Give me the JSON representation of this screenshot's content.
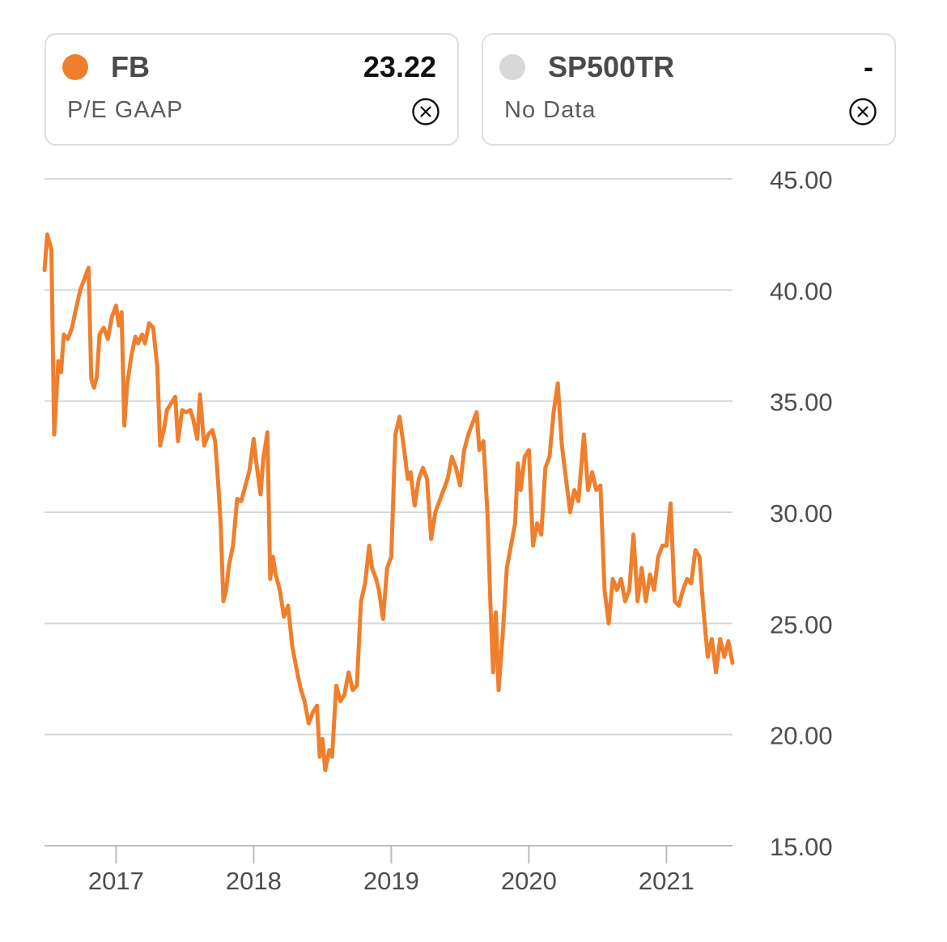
{
  "legend": [
    {
      "symbol": "FB",
      "value": "23.22",
      "metric": "P/E GAAP",
      "color": "#ef7f2d",
      "icon": "close-circle-icon"
    },
    {
      "symbol": "SP500TR",
      "value": "-",
      "metric": "No Data",
      "color": "#d8d8d8",
      "icon": "close-circle-icon"
    }
  ],
  "chart_data": {
    "type": "line",
    "title": "",
    "xlabel": "",
    "ylabel": "",
    "xlim": [
      2016.48,
      2021.48
    ],
    "ylim": [
      15,
      45
    ],
    "yticks": [
      "45.00",
      "40.00",
      "35.00",
      "30.00",
      "25.00",
      "20.00",
      "15.00"
    ],
    "xticks": [
      {
        "label": "2017",
        "value": 2017
      },
      {
        "label": "2018",
        "value": 2018
      },
      {
        "label": "2019",
        "value": 2019
      },
      {
        "label": "2020",
        "value": 2020
      },
      {
        "label": "2021",
        "value": 2021
      }
    ],
    "grid": true,
    "series": [
      {
        "name": "FB",
        "color": "#ef7f2d",
        "points": [
          [
            2016.48,
            40.9
          ],
          [
            2016.5,
            42.5
          ],
          [
            2016.53,
            41.8
          ],
          [
            2016.55,
            33.5
          ],
          [
            2016.58,
            36.8
          ],
          [
            2016.6,
            36.3
          ],
          [
            2016.62,
            38.0
          ],
          [
            2016.65,
            37.8
          ],
          [
            2016.68,
            38.3
          ],
          [
            2016.71,
            39.2
          ],
          [
            2016.74,
            40.0
          ],
          [
            2016.77,
            40.5
          ],
          [
            2016.8,
            41.0
          ],
          [
            2016.82,
            36.0
          ],
          [
            2016.84,
            35.6
          ],
          [
            2016.86,
            36.1
          ],
          [
            2016.88,
            38.0
          ],
          [
            2016.91,
            38.3
          ],
          [
            2016.94,
            37.8
          ],
          [
            2016.97,
            38.8
          ],
          [
            2017.0,
            39.3
          ],
          [
            2017.02,
            38.4
          ],
          [
            2017.04,
            39.0
          ],
          [
            2017.06,
            33.9
          ],
          [
            2017.08,
            35.7
          ],
          [
            2017.11,
            37.0
          ],
          [
            2017.14,
            37.9
          ],
          [
            2017.16,
            37.6
          ],
          [
            2017.19,
            38.0
          ],
          [
            2017.21,
            37.6
          ],
          [
            2017.24,
            38.5
          ],
          [
            2017.27,
            38.3
          ],
          [
            2017.3,
            36.5
          ],
          [
            2017.32,
            33.0
          ],
          [
            2017.35,
            33.8
          ],
          [
            2017.37,
            34.6
          ],
          [
            2017.4,
            34.9
          ],
          [
            2017.43,
            35.2
          ],
          [
            2017.45,
            33.2
          ],
          [
            2017.48,
            34.6
          ],
          [
            2017.51,
            34.5
          ],
          [
            2017.54,
            34.6
          ],
          [
            2017.56,
            34.2
          ],
          [
            2017.59,
            33.3
          ],
          [
            2017.61,
            35.3
          ],
          [
            2017.64,
            33.0
          ],
          [
            2017.67,
            33.5
          ],
          [
            2017.7,
            33.7
          ],
          [
            2017.72,
            33.2
          ],
          [
            2017.74,
            31.5
          ],
          [
            2017.76,
            29.5
          ],
          [
            2017.78,
            26.0
          ],
          [
            2017.8,
            26.5
          ],
          [
            2017.82,
            27.6
          ],
          [
            2017.85,
            28.5
          ],
          [
            2017.88,
            30.6
          ],
          [
            2017.91,
            30.5
          ],
          [
            2017.94,
            31.2
          ],
          [
            2017.97,
            31.9
          ],
          [
            2018.0,
            33.3
          ],
          [
            2018.02,
            32.2
          ],
          [
            2018.05,
            30.8
          ],
          [
            2018.07,
            32.4
          ],
          [
            2018.1,
            33.6
          ],
          [
            2018.12,
            27.0
          ],
          [
            2018.14,
            28.0
          ],
          [
            2018.16,
            27.2
          ],
          [
            2018.19,
            26.5
          ],
          [
            2018.22,
            25.3
          ],
          [
            2018.25,
            25.8
          ],
          [
            2018.28,
            24.0
          ],
          [
            2018.31,
            23.0
          ],
          [
            2018.34,
            22.1
          ],
          [
            2018.37,
            21.5
          ],
          [
            2018.4,
            20.5
          ],
          [
            2018.43,
            21.0
          ],
          [
            2018.46,
            21.3
          ],
          [
            2018.48,
            19.0
          ],
          [
            2018.5,
            19.8
          ],
          [
            2018.52,
            18.4
          ],
          [
            2018.55,
            19.3
          ],
          [
            2018.57,
            19.0
          ],
          [
            2018.6,
            22.2
          ],
          [
            2018.63,
            21.5
          ],
          [
            2018.66,
            21.8
          ],
          [
            2018.69,
            22.8
          ],
          [
            2018.72,
            22.0
          ],
          [
            2018.75,
            22.2
          ],
          [
            2018.78,
            26.0
          ],
          [
            2018.81,
            26.8
          ],
          [
            2018.84,
            28.5
          ],
          [
            2018.86,
            27.5
          ],
          [
            2018.89,
            27.0
          ],
          [
            2018.91,
            26.5
          ],
          [
            2018.94,
            25.2
          ],
          [
            2018.97,
            27.5
          ],
          [
            2019.0,
            28.0
          ],
          [
            2019.03,
            33.5
          ],
          [
            2019.06,
            34.3
          ],
          [
            2019.09,
            33.0
          ],
          [
            2019.12,
            31.5
          ],
          [
            2019.14,
            31.8
          ],
          [
            2019.17,
            30.3
          ],
          [
            2019.2,
            31.5
          ],
          [
            2019.23,
            32.0
          ],
          [
            2019.26,
            31.5
          ],
          [
            2019.29,
            28.8
          ],
          [
            2019.32,
            30.0
          ],
          [
            2019.35,
            30.5
          ],
          [
            2019.38,
            31.0
          ],
          [
            2019.41,
            31.5
          ],
          [
            2019.44,
            32.5
          ],
          [
            2019.47,
            32.0
          ],
          [
            2019.5,
            31.2
          ],
          [
            2019.53,
            32.8
          ],
          [
            2019.56,
            33.5
          ],
          [
            2019.59,
            34.0
          ],
          [
            2019.62,
            34.5
          ],
          [
            2019.64,
            32.8
          ],
          [
            2019.67,
            33.2
          ],
          [
            2019.7,
            29.8
          ],
          [
            2019.72,
            26.0
          ],
          [
            2019.74,
            22.8
          ],
          [
            2019.76,
            25.5
          ],
          [
            2019.78,
            22.0
          ],
          [
            2019.81,
            24.5
          ],
          [
            2019.84,
            27.5
          ],
          [
            2019.87,
            28.5
          ],
          [
            2019.9,
            29.5
          ],
          [
            2019.92,
            32.2
          ],
          [
            2019.94,
            31.0
          ],
          [
            2019.97,
            32.5
          ],
          [
            2020.0,
            32.8
          ],
          [
            2020.03,
            28.5
          ],
          [
            2020.06,
            29.5
          ],
          [
            2020.09,
            29.0
          ],
          [
            2020.12,
            32.0
          ],
          [
            2020.15,
            32.5
          ],
          [
            2020.18,
            34.5
          ],
          [
            2020.21,
            35.8
          ],
          [
            2020.24,
            33.0
          ],
          [
            2020.27,
            31.5
          ],
          [
            2020.3,
            30.0
          ],
          [
            2020.33,
            31.0
          ],
          [
            2020.36,
            30.5
          ],
          [
            2020.4,
            33.5
          ],
          [
            2020.43,
            31.0
          ],
          [
            2020.46,
            31.8
          ],
          [
            2020.49,
            31.0
          ],
          [
            2020.52,
            31.2
          ],
          [
            2020.55,
            26.5
          ],
          [
            2020.58,
            25.0
          ],
          [
            2020.61,
            27.0
          ],
          [
            2020.64,
            26.5
          ],
          [
            2020.67,
            27.0
          ],
          [
            2020.7,
            26.0
          ],
          [
            2020.73,
            26.5
          ],
          [
            2020.76,
            29.0
          ],
          [
            2020.79,
            26.0
          ],
          [
            2020.82,
            27.5
          ],
          [
            2020.85,
            26.0
          ],
          [
            2020.88,
            27.2
          ],
          [
            2020.91,
            26.5
          ],
          [
            2020.94,
            28.0
          ],
          [
            2020.97,
            28.5
          ],
          [
            2021.0,
            28.5
          ],
          [
            2021.03,
            30.4
          ],
          [
            2021.06,
            26.0
          ],
          [
            2021.09,
            25.8
          ],
          [
            2021.12,
            26.5
          ],
          [
            2021.15,
            27.0
          ],
          [
            2021.18,
            26.8
          ],
          [
            2021.21,
            28.3
          ],
          [
            2021.24,
            28.0
          ],
          [
            2021.27,
            25.5
          ],
          [
            2021.3,
            23.5
          ],
          [
            2021.33,
            24.3
          ],
          [
            2021.36,
            22.8
          ],
          [
            2021.39,
            24.3
          ],
          [
            2021.42,
            23.5
          ],
          [
            2021.45,
            24.2
          ],
          [
            2021.48,
            23.22
          ]
        ]
      }
    ]
  }
}
